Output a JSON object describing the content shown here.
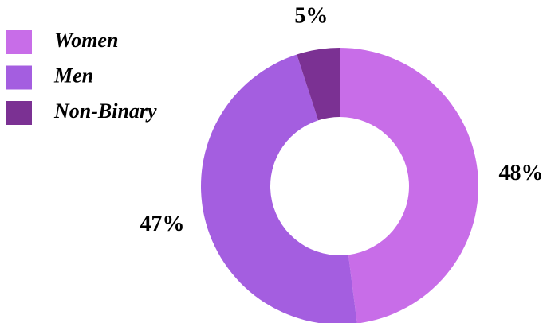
{
  "chart_data": {
    "type": "donut",
    "categories": [
      "Women",
      "Men",
      "Non-Binary"
    ],
    "values": [
      48,
      47,
      5
    ],
    "value_labels": [
      "48%",
      "47%",
      "5%"
    ],
    "colors": [
      "#c86de8",
      "#a45ee0",
      "#7b3193"
    ],
    "legend": "top-left"
  }
}
